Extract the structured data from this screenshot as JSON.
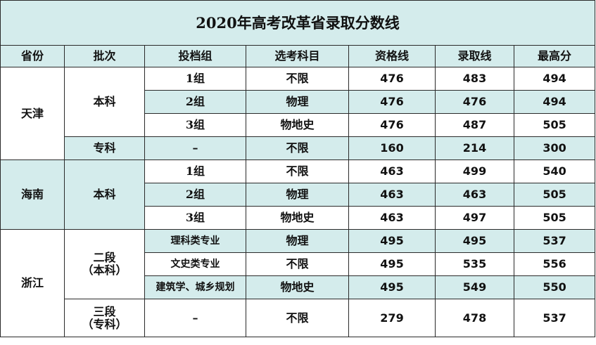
{
  "title": "2020年高考改革省录取分数线",
  "headers": [
    "省份",
    "批次",
    "投档组",
    "选考科目",
    "资格线",
    "录取线",
    "最高分"
  ],
  "provinces": {
    "tianjin": "天津",
    "hainan": "海南",
    "zhejiang": "浙江"
  },
  "batches": {
    "benke": "本科",
    "zhuanke": "专科",
    "erduan_line1": "二段",
    "erduan_line2": "（本科）",
    "sanduan_line1": "三段",
    "sanduan_line2": "（专科）"
  },
  "rows": [
    {
      "group": "1组",
      "subjects": "不限",
      "qual": "476",
      "admit": "483",
      "max": "494"
    },
    {
      "group": "2组",
      "subjects": "物理",
      "qual": "476",
      "admit": "476",
      "max": "494"
    },
    {
      "group": "3组",
      "subjects": "物地史",
      "qual": "476",
      "admit": "487",
      "max": "505"
    },
    {
      "group": "–",
      "subjects": "不限",
      "qual": "160",
      "admit": "214",
      "max": "300"
    },
    {
      "group": "1组",
      "subjects": "不限",
      "qual": "463",
      "admit": "499",
      "max": "540"
    },
    {
      "group": "2组",
      "subjects": "物理",
      "qual": "463",
      "admit": "463",
      "max": "505"
    },
    {
      "group": "3组",
      "subjects": "物地史",
      "qual": "463",
      "admit": "497",
      "max": "505"
    },
    {
      "group": "理科类专业",
      "subjects": "物理",
      "qual": "495",
      "admit": "495",
      "max": "537"
    },
    {
      "group": "文史类专业",
      "subjects": "不限",
      "qual": "495",
      "admit": "535",
      "max": "556"
    },
    {
      "group": "建筑学、城乡规划",
      "subjects": "物地史",
      "qual": "495",
      "admit": "549",
      "max": "550"
    },
    {
      "group": "–",
      "subjects": "不限",
      "qual": "279",
      "admit": "478",
      "max": "537"
    }
  ],
  "colors": {
    "highlight": "#d4ecec",
    "border": "#2a2a2a"
  }
}
